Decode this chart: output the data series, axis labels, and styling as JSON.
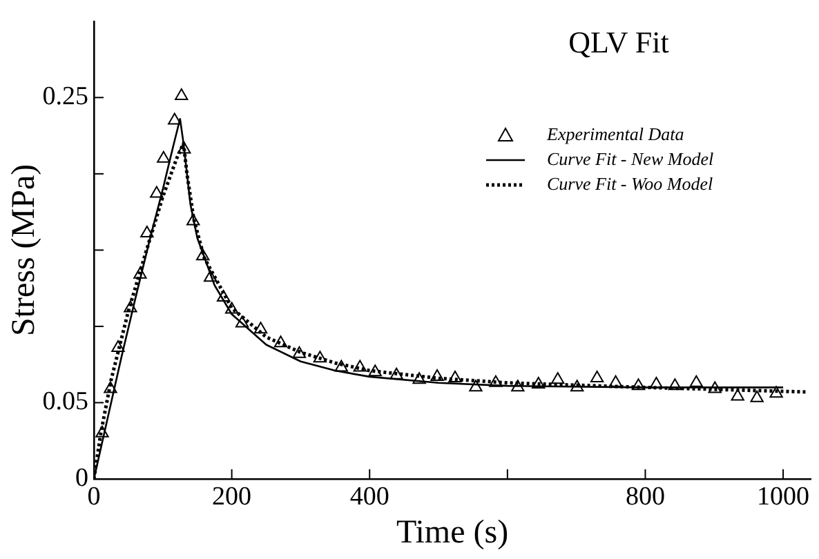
{
  "chart_data": {
    "type": "line",
    "title": "QLV Fit",
    "xlabel": "Time (s)",
    "ylabel": "Stress (MPa)",
    "xlim": [
      0,
      1040
    ],
    "ylim": [
      0,
      0.3
    ],
    "xticks": [
      0,
      200,
      400,
      {
        "value": 600,
        "label": null
      },
      800,
      1000
    ],
    "yticks": [
      0,
      0.05,
      {
        "value": 0.1,
        "label": null
      },
      {
        "value": 0.15,
        "label": null
      },
      {
        "value": 0.2,
        "label": null
      },
      0.25
    ],
    "grid": false,
    "legend": "top right",
    "series": [
      {
        "name": "Experimental Data",
        "type": "scatter",
        "marker": "triangle",
        "color": "#000000",
        "x": [
          12,
          24,
          35,
          53,
          67,
          77,
          91,
          101,
          117,
          127,
          131,
          144,
          158,
          169,
          188,
          200,
          215,
          242,
          271,
          298,
          328,
          359,
          386,
          408,
          439,
          472,
          498,
          524,
          554,
          583,
          615,
          645,
          673,
          701,
          730,
          757,
          790,
          816,
          843,
          874,
          901,
          934,
          962,
          990
        ],
        "values": [
          0.03,
          0.059,
          0.086,
          0.112,
          0.134,
          0.161,
          0.187,
          0.21,
          0.235,
          0.251,
          0.216,
          0.169,
          0.146,
          0.132,
          0.119,
          0.111,
          0.102,
          0.098,
          0.089,
          0.082,
          0.079,
          0.073,
          0.073,
          0.07,
          0.068,
          0.065,
          0.067,
          0.066,
          0.06,
          0.063,
          0.06,
          0.062,
          0.065,
          0.06,
          0.066,
          0.063,
          0.061,
          0.062,
          0.061,
          0.063,
          0.059,
          0.054,
          0.053,
          0.056
        ]
      },
      {
        "name": "Curve Fit - New Model",
        "type": "line",
        "marker": "none",
        "line_style": "solid",
        "color": "#000000",
        "x": [
          0,
          20,
          40,
          60,
          80,
          100,
          115,
          125,
          130,
          140,
          150,
          175,
          200,
          250,
          300,
          350,
          400,
          500,
          600,
          800,
          1000
        ],
        "values": [
          0,
          0.04,
          0.08,
          0.118,
          0.155,
          0.19,
          0.218,
          0.236,
          0.22,
          0.18,
          0.158,
          0.127,
          0.108,
          0.088,
          0.077,
          0.071,
          0.067,
          0.063,
          0.061,
          0.06,
          0.06
        ]
      },
      {
        "name": "Curve Fit - Woo Model",
        "type": "line",
        "marker": "none",
        "line_style": "dotted",
        "color": "#000000",
        "x": [
          0,
          10,
          25,
          50,
          75,
          100,
          120,
          130,
          135,
          145,
          160,
          200,
          250,
          300,
          350,
          400,
          500,
          600,
          800,
          1035
        ],
        "values": [
          0,
          0.03,
          0.065,
          0.11,
          0.148,
          0.185,
          0.21,
          0.22,
          0.2,
          0.17,
          0.145,
          0.112,
          0.093,
          0.083,
          0.076,
          0.071,
          0.066,
          0.063,
          0.06,
          0.057
        ]
      }
    ]
  }
}
